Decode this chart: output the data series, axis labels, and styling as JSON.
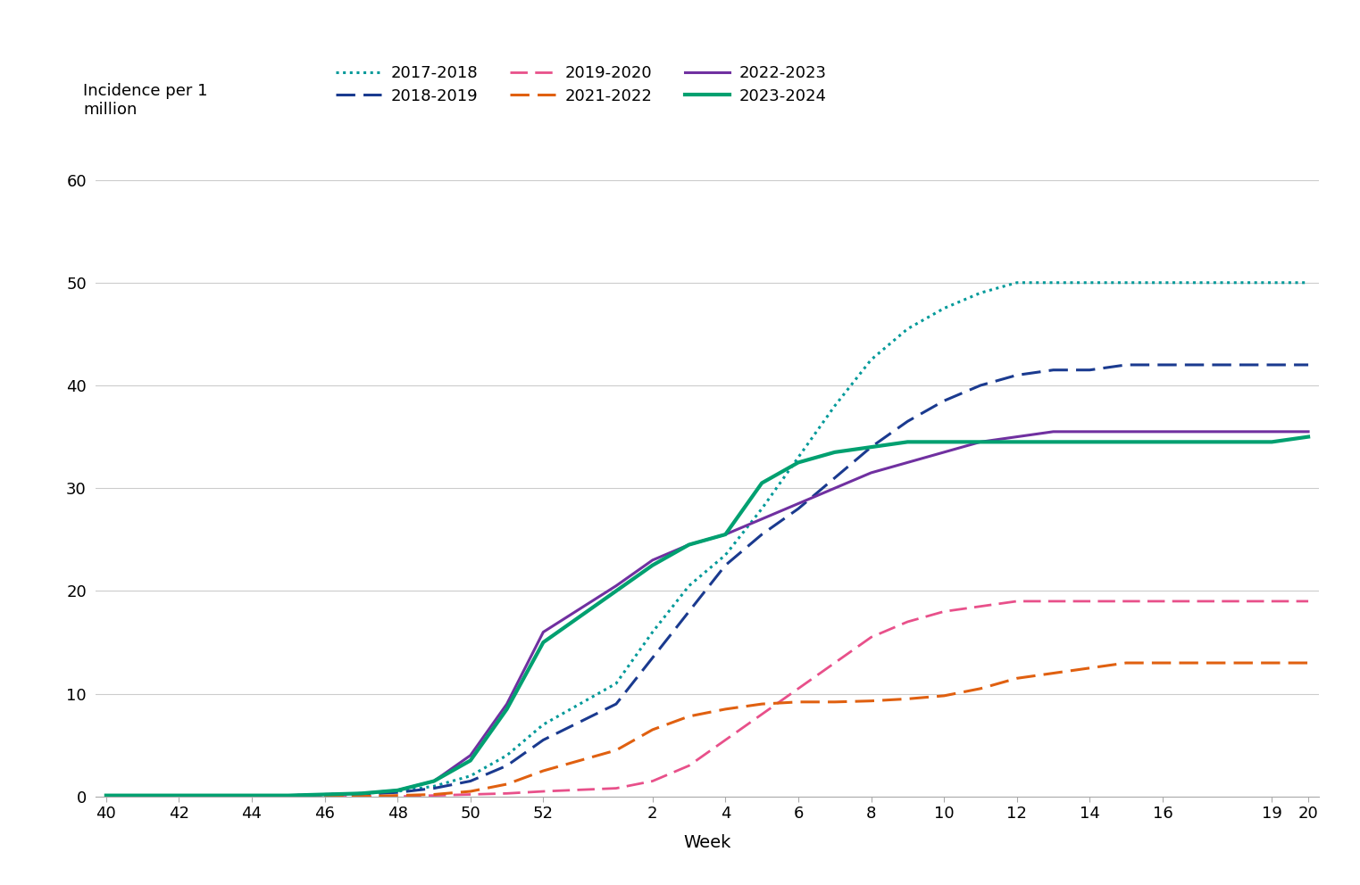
{
  "ylabel": "Incidence per 1\nmillion",
  "xlabel": "Week",
  "ylim": [
    0,
    62
  ],
  "yticks": [
    0,
    10,
    20,
    30,
    40,
    50,
    60
  ],
  "background_color": "#ffffff",
  "grid_color": "#cccccc",
  "legend_fontsize": 13,
  "axis_fontsize": 14,
  "tick_fontsize": 13,
  "series": [
    {
      "label": "2017-2018",
      "color": "#009999",
      "linestyle": "dotted",
      "linewidth": 2.2,
      "data_x": [
        40,
        41,
        42,
        43,
        44,
        45,
        46,
        47,
        48,
        49,
        50,
        51,
        52,
        1,
        2,
        3,
        4,
        5,
        6,
        7,
        8,
        9,
        10,
        11,
        12,
        13,
        14,
        15,
        16,
        17,
        18,
        19,
        20
      ],
      "data_y": [
        0.1,
        0.1,
        0.1,
        0.1,
        0.1,
        0.1,
        0.2,
        0.3,
        0.5,
        1.0,
        2.0,
        4.0,
        7.0,
        11.0,
        16.0,
        20.5,
        23.5,
        28.0,
        33.0,
        38.0,
        42.5,
        45.5,
        47.5,
        49.0,
        50.0,
        50.0,
        50.0,
        50.0,
        50.0,
        50.0,
        50.0,
        50.0,
        50.0
      ]
    },
    {
      "label": "2018-2019",
      "color": "#1a3a8f",
      "linestyle": "dashed",
      "linewidth": 2.2,
      "data_x": [
        40,
        41,
        42,
        43,
        44,
        45,
        46,
        47,
        48,
        49,
        50,
        51,
        52,
        1,
        2,
        3,
        4,
        5,
        6,
        7,
        8,
        9,
        10,
        11,
        12,
        13,
        14,
        15,
        16,
        17,
        18,
        19,
        20
      ],
      "data_y": [
        0.0,
        0.0,
        0.0,
        0.0,
        0.1,
        0.1,
        0.1,
        0.2,
        0.4,
        0.8,
        1.5,
        3.0,
        5.5,
        9.0,
        13.5,
        18.0,
        22.5,
        25.5,
        28.0,
        31.0,
        34.0,
        36.5,
        38.5,
        40.0,
        41.0,
        41.5,
        41.5,
        42.0,
        42.0,
        42.0,
        42.0,
        42.0,
        42.0
      ]
    },
    {
      "label": "2019-2020",
      "color": "#e8508a",
      "linestyle": "dashed",
      "linewidth": 2.0,
      "data_x": [
        40,
        41,
        42,
        43,
        44,
        45,
        46,
        47,
        48,
        49,
        50,
        51,
        52,
        1,
        2,
        3,
        4,
        5,
        6,
        7,
        8,
        9,
        10,
        11,
        12,
        13,
        14,
        15,
        16,
        17,
        18,
        19,
        20
      ],
      "data_y": [
        0.0,
        0.0,
        0.0,
        0.0,
        0.0,
        0.0,
        0.0,
        0.0,
        0.0,
        0.1,
        0.2,
        0.3,
        0.5,
        0.8,
        1.5,
        3.0,
        5.5,
        8.0,
        10.5,
        13.0,
        15.5,
        17.0,
        18.0,
        18.5,
        19.0,
        19.0,
        19.0,
        19.0,
        19.0,
        19.0,
        19.0,
        19.0,
        19.0
      ]
    },
    {
      "label": "2021-2022",
      "color": "#e06010",
      "linestyle": "dashed",
      "linewidth": 2.2,
      "data_x": [
        40,
        41,
        42,
        43,
        44,
        45,
        46,
        47,
        48,
        49,
        50,
        51,
        52,
        1,
        2,
        3,
        4,
        5,
        6,
        7,
        8,
        9,
        10,
        11,
        12,
        13,
        14,
        15,
        16,
        17,
        18,
        19,
        20
      ],
      "data_y": [
        0.0,
        0.0,
        0.0,
        0.0,
        0.0,
        0.0,
        0.0,
        0.0,
        0.1,
        0.2,
        0.5,
        1.2,
        2.5,
        4.5,
        6.5,
        7.8,
        8.5,
        9.0,
        9.2,
        9.2,
        9.3,
        9.5,
        9.8,
        10.5,
        11.5,
        12.0,
        12.5,
        13.0,
        13.0,
        13.0,
        13.0,
        13.0,
        13.0
      ]
    },
    {
      "label": "2022-2023",
      "color": "#7030a0",
      "linestyle": "solid",
      "linewidth": 2.2,
      "data_x": [
        40,
        41,
        42,
        43,
        44,
        45,
        46,
        47,
        48,
        49,
        50,
        51,
        52,
        1,
        2,
        3,
        4,
        5,
        6,
        7,
        8,
        9,
        10,
        11,
        12,
        13,
        14,
        15,
        16,
        17,
        18,
        19,
        20
      ],
      "data_y": [
        0.1,
        0.1,
        0.1,
        0.1,
        0.1,
        0.1,
        0.2,
        0.3,
        0.6,
        1.5,
        4.0,
        9.0,
        16.0,
        20.5,
        23.0,
        24.5,
        25.5,
        27.0,
        28.5,
        30.0,
        31.5,
        32.5,
        33.5,
        34.5,
        35.0,
        35.5,
        35.5,
        35.5,
        35.5,
        35.5,
        35.5,
        35.5,
        35.5
      ]
    },
    {
      "label": "2023-2024",
      "color": "#00a070",
      "linestyle": "solid",
      "linewidth": 3.0,
      "data_x": [
        40,
        41,
        42,
        43,
        44,
        45,
        46,
        47,
        48,
        49,
        50,
        51,
        52,
        1,
        2,
        3,
        4,
        5,
        6,
        7,
        8,
        9,
        10,
        11,
        12,
        13,
        14,
        15,
        16,
        17,
        18,
        19,
        20
      ],
      "data_y": [
        0.1,
        0.1,
        0.1,
        0.1,
        0.1,
        0.1,
        0.2,
        0.3,
        0.6,
        1.5,
        3.5,
        8.5,
        15.0,
        20.0,
        22.5,
        24.5,
        25.5,
        30.5,
        32.5,
        33.5,
        34.0,
        34.5,
        34.5,
        34.5,
        34.5,
        34.5,
        34.5,
        34.5,
        34.5,
        34.5,
        34.5,
        34.5,
        35.0
      ]
    }
  ]
}
